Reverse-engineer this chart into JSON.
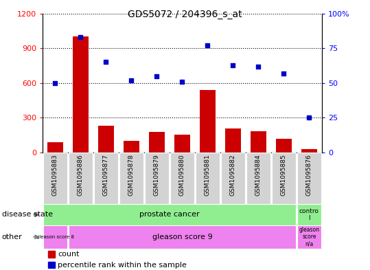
{
  "title": "GDS5072 / 204396_s_at",
  "samples": [
    "GSM1095883",
    "GSM1095886",
    "GSM1095877",
    "GSM1095878",
    "GSM1095879",
    "GSM1095880",
    "GSM1095881",
    "GSM1095882",
    "GSM1095884",
    "GSM1095885",
    "GSM1095876"
  ],
  "counts": [
    90,
    1000,
    230,
    100,
    180,
    155,
    540,
    210,
    185,
    120,
    30
  ],
  "percentile": [
    50,
    83,
    65,
    52,
    55,
    51,
    77,
    63,
    62,
    57,
    25
  ],
  "left_ylim": [
    0,
    1200
  ],
  "right_ylim": [
    0,
    100
  ],
  "left_yticks": [
    0,
    300,
    600,
    900,
    1200
  ],
  "right_yticks": [
    0,
    25,
    50,
    75,
    100
  ],
  "left_yticklabels": [
    "0",
    "300",
    "600",
    "900",
    "1200"
  ],
  "right_yticklabels": [
    "0",
    "25",
    "50",
    "75",
    "100%"
  ],
  "bar_color": "#cc0000",
  "dot_color": "#0000cc",
  "tick_bg_color": "#d3d3d3",
  "disease_green": "#90ee90",
  "other_purple": "#ee82ee"
}
